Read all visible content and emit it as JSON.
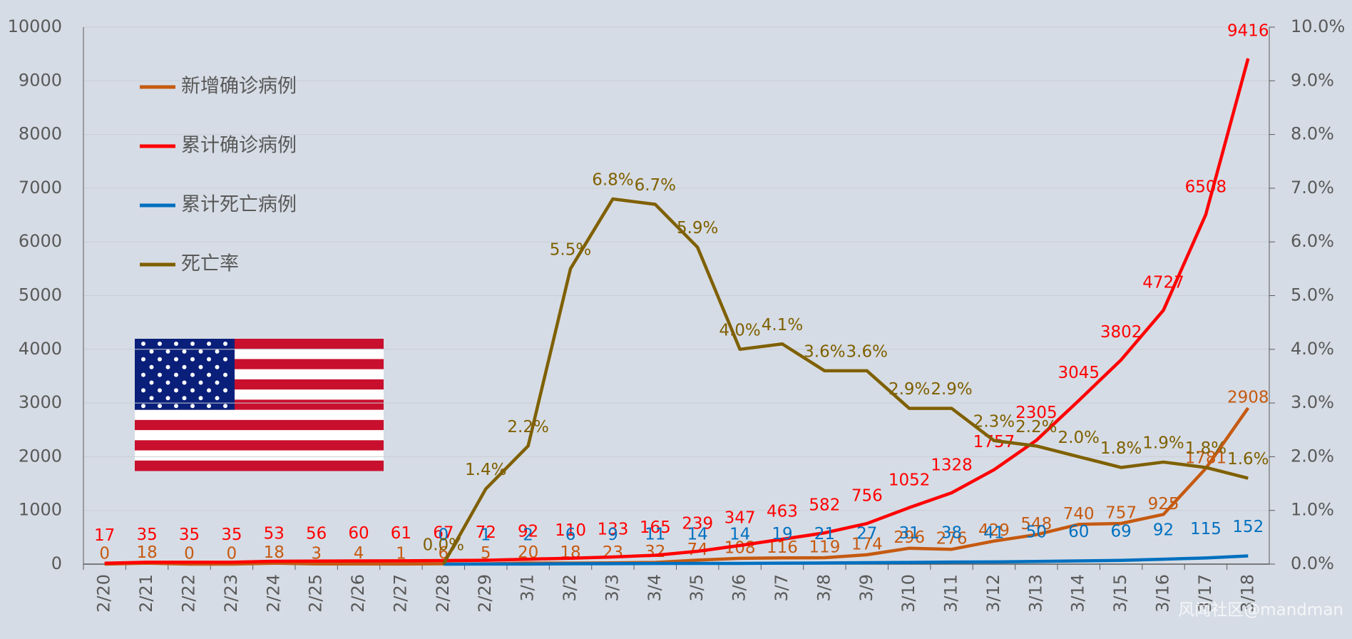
{
  "chart_data": {
    "type": "line",
    "categories": [
      "2/20",
      "2/21",
      "2/22",
      "2/23",
      "2/24",
      "2/25",
      "2/26",
      "2/27",
      "2/28",
      "2/29",
      "3/1",
      "3/2",
      "3/3",
      "3/4",
      "3/5",
      "3/6",
      "3/7",
      "3/8",
      "3/9",
      "3/10",
      "3/11",
      "3/12",
      "3/13",
      "3/14",
      "3/15",
      "3/16",
      "3/17",
      "3/18"
    ],
    "series": [
      {
        "name": "新增确诊病例",
        "color": "#c55a11",
        "values": [
          0,
          18,
          0,
          0,
          18,
          3,
          4,
          1,
          6,
          5,
          20,
          18,
          23,
          32,
          74,
          108,
          116,
          119,
          174,
          296,
          276,
          429,
          548,
          740,
          757,
          925,
          1781,
          2908
        ]
      },
      {
        "name": "累计确诊病例",
        "color": "#ff0000",
        "values": [
          17,
          35,
          35,
          35,
          53,
          56,
          60,
          61,
          67,
          72,
          92,
          110,
          133,
          165,
          239,
          347,
          463,
          582,
          756,
          1052,
          1328,
          1757,
          2305,
          3045,
          3802,
          4727,
          6508,
          9416
        ]
      },
      {
        "name": "累计死亡病例",
        "color": "#0070c0",
        "values": [
          null,
          null,
          null,
          null,
          null,
          null,
          null,
          null,
          0,
          1,
          2,
          6,
          9,
          11,
          14,
          14,
          19,
          21,
          27,
          31,
          38,
          41,
          50,
          60,
          69,
          92,
          115,
          152
        ]
      },
      {
        "name": "死亡率",
        "color": "#7f6000",
        "axis": "y2",
        "values": [
          null,
          null,
          null,
          null,
          null,
          null,
          null,
          null,
          0,
          1.4,
          2.2,
          5.5,
          6.8,
          6.7,
          5.9,
          4.0,
          4.1,
          3.6,
          3.6,
          2.9,
          2.9,
          2.3,
          2.2,
          2.0,
          1.8,
          1.9,
          1.8,
          1.6
        ],
        "value_labels": [
          null,
          null,
          null,
          null,
          null,
          null,
          null,
          null,
          "0.0%",
          "1.4%",
          "2.2%",
          "5.5%",
          "6.8%",
          "6.7%",
          "5.9%",
          "4.0%",
          "4.1%",
          "3.6%",
          "3.6%",
          "2.9%",
          "2.9%",
          "2.3%",
          "2.2%",
          "2.0%",
          "1.8%",
          "1.9%",
          "1.8%",
          "1.6%"
        ]
      }
    ],
    "ylim": [
      0,
      10000
    ],
    "yticks": [
      0,
      1000,
      2000,
      3000,
      4000,
      5000,
      6000,
      7000,
      8000,
      9000,
      10000
    ],
    "y2lim": [
      0,
      10
    ],
    "y2ticks": [
      {
        "value": 0,
        "label": "0.0%"
      },
      {
        "value": 1,
        "label": "1.0%"
      },
      {
        "value": 2,
        "label": "2.0%"
      },
      {
        "value": 3,
        "label": "3.0%"
      },
      {
        "value": 4,
        "label": "4.0%"
      },
      {
        "value": 5,
        "label": "5.0%"
      },
      {
        "value": 6,
        "label": "6.0%"
      },
      {
        "value": 7,
        "label": "7.0%"
      },
      {
        "value": 8,
        "label": "8.0%"
      },
      {
        "value": 9,
        "label": "9.0%"
      },
      {
        "value": 10,
        "label": "10.0%"
      }
    ],
    "grid": true,
    "watermark": "风闻社区@mandman"
  }
}
